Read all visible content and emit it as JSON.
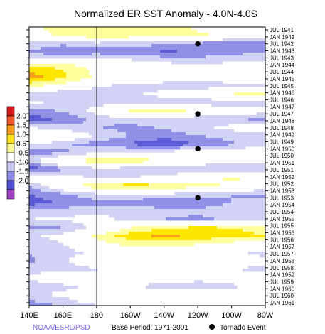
{
  "chart_data": {
    "type": "heatmap",
    "title": "Normalized ER SST Anomaly - 4.0N-4.0S",
    "x_ticks": [
      "140E",
      "160E",
      "180",
      "160W",
      "140W",
      "120W",
      "100W",
      "80W"
    ],
    "y_ticks": [
      "JUL 1941",
      "JAN 1942",
      "JUL 1942",
      "JAN 1943",
      "JUL 1943",
      "JAN 1944",
      "JUL 1944",
      "JAN 1945",
      "JUL 1945",
      "JAN 1946",
      "JUL 1946",
      "JAN 1947",
      "JUL 1947",
      "JAN 1948",
      "JUL 1948",
      "JAN 1949",
      "JUL 1949",
      "JAN 1950",
      "JUL 1950",
      "JAN 1951",
      "JUL 1951",
      "JAN 1952",
      "JUL 1952",
      "JAN 1953",
      "JUL 1953",
      "JAN 1954",
      "JUL 1954",
      "JAN 1955",
      "JUL 1955",
      "JAN 1956",
      "JUL 1956",
      "JAN 1957",
      "JUL 1957",
      "JAN 1958",
      "JUL 1958",
      "JAN 1959",
      "JUL 1959",
      "JAN 1960",
      "JUL 1960",
      "JAN 1961"
    ],
    "colorbar": {
      "labels": [
        "2.0",
        "1.5",
        "1.0",
        "0.5",
        "-0.5",
        "-1.0",
        "-1.5",
        "-2.0"
      ],
      "colors": [
        "#d7191c",
        "#f0592b",
        "#f99a1c",
        "#ffe31a",
        "#ffff96",
        "#ffffff",
        "#c8c8f0",
        "#8c8ce6",
        "#5050d2",
        "#a040c0"
      ]
    },
    "band_colors": {
      "pos3": "#e8502a",
      "pos2": "#f9a11b",
      "pos1": "#ffe600",
      "pos0": "#ffff9e",
      "zero": "#ffffff",
      "neg0": "#d2d2f4",
      "neg1": "#9090e6",
      "neg2": "#5c5cd6",
      "neg3": "#a83cc0"
    },
    "anomaly_bands": [
      {
        "t": 0.0,
        "a": [
          0.3,
          0.8,
          1.0,
          0.9,
          0.7,
          0.4,
          0.2,
          0.1
        ]
      },
      {
        "t": 0.03,
        "a": [
          0.2,
          0.6,
          0.9,
          0.8,
          0.8,
          0.6,
          0.4,
          0.3
        ]
      },
      {
        "t": 0.06,
        "a": [
          -0.6,
          -0.9,
          -0.7,
          -0.8,
          -0.9,
          -1.2,
          -1.4,
          -1.3
        ]
      },
      {
        "t": 0.09,
        "a": [
          -1.1,
          -1.5,
          -1.3,
          -1.4,
          -1.6,
          -1.5,
          -1.2,
          -1.0
        ]
      },
      {
        "t": 0.12,
        "a": [
          -0.3,
          0.2,
          0.1,
          -0.4,
          -0.6,
          -0.7,
          -0.6,
          -0.5
        ]
      },
      {
        "t": 0.15,
        "a": [
          1.3,
          1.0,
          0.3,
          0.0,
          -0.1,
          -0.2,
          -0.1,
          0.1
        ]
      },
      {
        "t": 0.18,
        "a": [
          1.8,
          1.1,
          0.4,
          0.1,
          0.0,
          0.0,
          0.1,
          0.1
        ]
      },
      {
        "t": 0.21,
        "a": [
          0.6,
          0.3,
          -0.4,
          -0.7,
          -0.8,
          -0.9,
          -0.8,
          -0.6
        ]
      },
      {
        "t": 0.24,
        "a": [
          -0.7,
          -1.0,
          -0.9,
          -0.6,
          -0.3,
          0.2,
          0.5,
          0.7
        ]
      },
      {
        "t": 0.27,
        "a": [
          -0.4,
          -0.6,
          -0.7,
          -0.8,
          -0.8,
          -0.9,
          -0.9,
          -0.8
        ]
      },
      {
        "t": 0.3,
        "a": [
          -1.2,
          -0.9,
          -0.3,
          0.6,
          0.8,
          0.4,
          0.0,
          -0.2
        ]
      },
      {
        "t": 0.33,
        "a": [
          -1.8,
          -1.4,
          -0.8,
          -0.6,
          -0.7,
          -0.9,
          -1.0,
          -1.1
        ]
      },
      {
        "t": 0.36,
        "a": [
          -0.5,
          -0.8,
          -1.0,
          -1.2,
          -0.9,
          -0.6,
          -0.3,
          0.1
        ]
      },
      {
        "t": 0.39,
        "a": [
          0.4,
          0.2,
          -0.5,
          -1.0,
          -1.3,
          -1.0,
          -0.8,
          -0.9
        ]
      },
      {
        "t": 0.42,
        "a": [
          -0.4,
          -0.9,
          -1.3,
          -1.6,
          -1.9,
          -1.5,
          -1.1,
          -0.7
        ]
      },
      {
        "t": 0.45,
        "a": [
          -1.3,
          -1.1,
          -0.5,
          -0.3,
          -0.2,
          -0.1,
          0.0,
          0.1
        ]
      },
      {
        "t": 0.48,
        "a": [
          -0.7,
          0.4,
          0.9,
          0.9,
          0.5,
          0.1,
          -0.2,
          -0.4
        ]
      },
      {
        "t": 0.51,
        "a": [
          -1.9,
          -1.1,
          -0.7,
          -0.8,
          -0.9,
          -1.0,
          -1.1,
          -0.9
        ]
      },
      {
        "t": 0.54,
        "a": [
          0.3,
          -0.2,
          -0.6,
          -0.5,
          -0.3,
          0.2,
          0.6,
          0.4
        ]
      },
      {
        "t": 0.57,
        "a": [
          -1.0,
          0.2,
          0.9,
          1.3,
          1.1,
          0.7,
          0.4,
          0.1
        ]
      },
      {
        "t": 0.6,
        "a": [
          -1.5,
          -1.1,
          -0.6,
          -0.5,
          -0.6,
          -0.8,
          -1.0,
          -1.1
        ]
      },
      {
        "t": 0.63,
        "a": [
          -1.8,
          -1.4,
          -1.2,
          -1.3,
          -1.4,
          -1.3,
          -1.0,
          -0.8
        ]
      },
      {
        "t": 0.66,
        "a": [
          -0.9,
          -0.8,
          -0.6,
          -0.6,
          -0.8,
          -0.9,
          -0.7,
          -0.5
        ]
      },
      {
        "t": 0.69,
        "a": [
          -0.5,
          -0.4,
          -0.3,
          -0.7,
          -1.0,
          -1.1,
          -0.9,
          -0.6
        ]
      },
      {
        "t": 0.72,
        "a": [
          -1.2,
          -1.0,
          -0.3,
          0.5,
          0.9,
          1.1,
          1.0,
          0.8
        ]
      },
      {
        "t": 0.75,
        "a": [
          -0.6,
          -0.3,
          0.6,
          1.3,
          1.6,
          1.4,
          1.2,
          1.0
        ]
      },
      {
        "t": 0.78,
        "a": [
          -0.9,
          -0.5,
          0.3,
          0.6,
          0.7,
          0.5,
          0.2,
          0.0
        ]
      },
      {
        "t": 0.81,
        "a": [
          -1.0,
          -0.8,
          -0.3,
          -0.1,
          0.0,
          -0.2,
          -0.4,
          -0.6
        ]
      },
      {
        "t": 0.84,
        "a": [
          -1.1,
          -0.6,
          0.2,
          0.5,
          0.3,
          -0.1,
          -0.3,
          -0.4
        ]
      },
      {
        "t": 0.87,
        "a": [
          -0.7,
          -0.9,
          -0.6,
          -0.3,
          -0.2,
          -0.3,
          -0.5,
          -0.6
        ]
      },
      {
        "t": 0.9,
        "a": [
          -0.3,
          0.2,
          0.6,
          0.2,
          -0.1,
          -0.3,
          -0.2,
          -0.1
        ]
      },
      {
        "t": 0.93,
        "a": [
          -1.0,
          -0.7,
          -0.4,
          -0.6,
          -0.7,
          -0.8,
          -0.6,
          -0.3
        ]
      },
      {
        "t": 0.96,
        "a": [
          -0.5,
          -0.4,
          0.3,
          0.6,
          0.4,
          0.1,
          -0.1,
          0.0
        ]
      },
      {
        "t": 1.0,
        "a": [
          -1.4,
          -0.9,
          -0.6,
          -0.4,
          -0.3,
          -0.2,
          -0.1,
          0.0
        ]
      }
    ],
    "tornado_events": [
      {
        "x": "120W",
        "date": "JUL 1942"
      },
      {
        "x": "120W",
        "date": "JUL 1947"
      },
      {
        "x": "120W",
        "date": "JAN 1950"
      },
      {
        "x": "120W",
        "date": "JUL 1953"
      }
    ],
    "footer": {
      "brand": "NOAA/ESRL/PSD",
      "base_period": "Base Period: 1971-2001",
      "legend_label": "Tornado Event"
    }
  },
  "colors": {
    "brand": "#7b68ee",
    "event_marker": "#000000"
  }
}
